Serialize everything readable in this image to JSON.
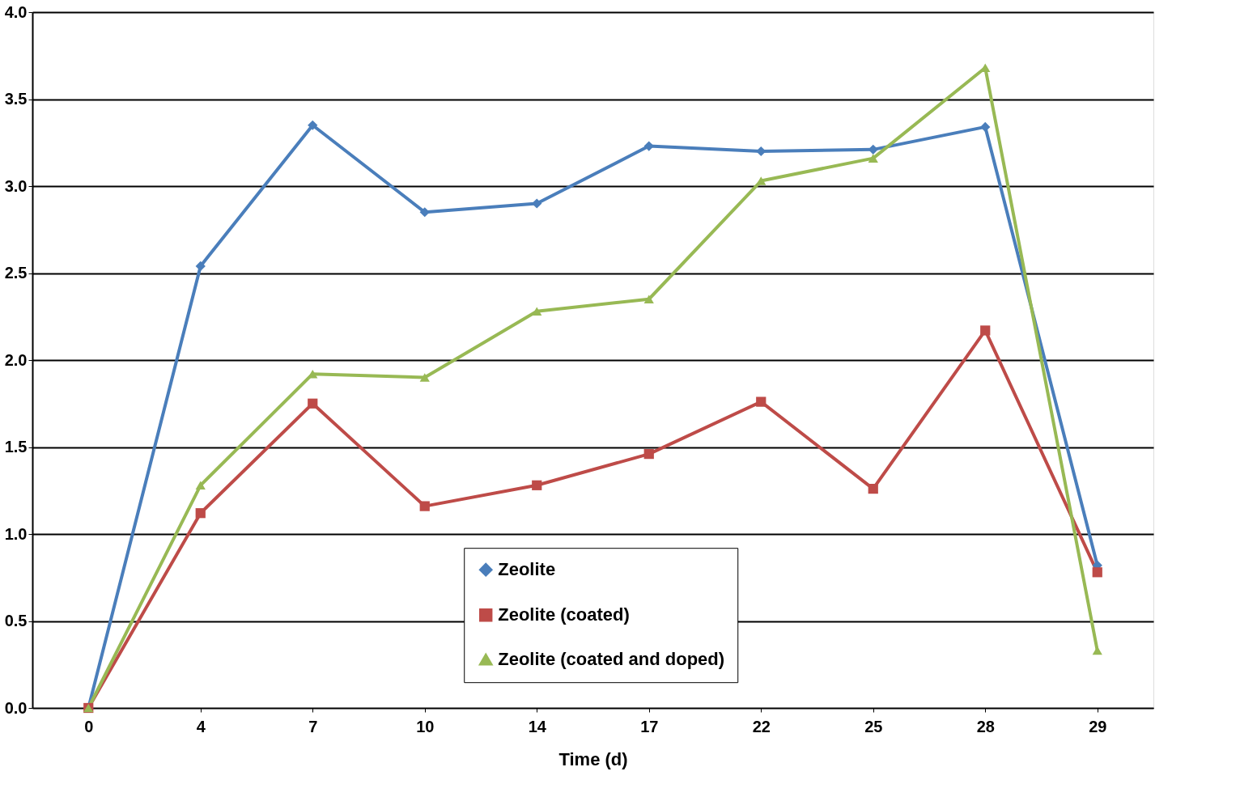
{
  "chart_data": {
    "type": "line",
    "xlabel": "Time (d)",
    "categories": [
      "0",
      "4",
      "7",
      "10",
      "14",
      "17",
      "22",
      "25",
      "28",
      "29"
    ],
    "ylim": [
      0,
      4
    ],
    "yticks": [
      {
        "value": 0,
        "label": "0.0"
      },
      {
        "value": 0.5,
        "label": "0.5"
      },
      {
        "value": 1,
        "label": "1.0"
      },
      {
        "value": 1.5,
        "label": "1.5"
      },
      {
        "value": 2,
        "label": "2.0"
      },
      {
        "value": 2.5,
        "label": "2.5"
      },
      {
        "value": 3,
        "label": "3.0"
      },
      {
        "value": 3.5,
        "label": "3.5"
      },
      {
        "value": 4,
        "label": "4.0"
      }
    ],
    "grid": "y",
    "legend": "bottom",
    "line_style": "solid",
    "series": [
      {
        "name": "Zeolite",
        "color": "#4a7ebb",
        "marker": "diamond",
        "values": [
          0,
          2.54,
          3.35,
          2.85,
          2.9,
          3.23,
          3.2,
          3.21,
          3.34,
          0.82
        ]
      },
      {
        "name": "Zeolite (coated)",
        "color": "#be4b48",
        "marker": "square",
        "values": [
          0,
          1.12,
          1.75,
          1.16,
          1.28,
          1.46,
          1.76,
          1.26,
          2.17,
          0.78
        ]
      },
      {
        "name": "Zeolite (coated and doped)",
        "color": "#98b954",
        "marker": "triangle",
        "values": [
          0,
          1.28,
          1.92,
          1.9,
          2.28,
          2.35,
          3.03,
          3.16,
          3.68,
          0.33
        ]
      }
    ]
  }
}
